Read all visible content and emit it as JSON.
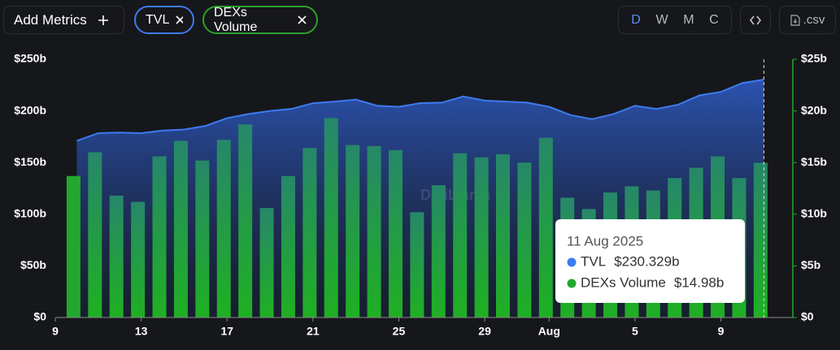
{
  "toolbar": {
    "add_metrics": "Add Metrics",
    "chips": [
      "TVL",
      "DEXs Volume"
    ],
    "periods": [
      "D",
      "W",
      "M",
      "C"
    ],
    "csv": ".csv"
  },
  "chart_data": {
    "type": "combo",
    "watermark": "DefiLlama",
    "x": [
      10,
      11,
      12,
      13,
      14,
      15,
      16,
      17,
      18,
      19,
      20,
      21,
      22,
      23,
      24,
      25,
      26,
      27,
      28,
      29,
      30,
      31,
      32,
      33,
      34,
      35,
      36,
      37,
      38,
      39,
      40,
      41,
      42
    ],
    "xlim": [
      9,
      43.35
    ],
    "xticks": [
      9,
      13,
      17,
      21,
      25,
      29,
      {
        "value": 32,
        "label": "Aug"
      },
      {
        "value": 36,
        "label": "5"
      },
      {
        "value": 40,
        "label": "9"
      }
    ],
    "ylim": [
      0,
      250
    ],
    "yticks": [
      {
        "value": 0,
        "label": "$0"
      },
      {
        "value": 50,
        "label": "$50b"
      },
      {
        "value": 100,
        "label": "$100b"
      },
      {
        "value": 150,
        "label": "$150b"
      },
      {
        "value": 200,
        "label": "$200b"
      },
      {
        "value": 250,
        "label": "$250b"
      }
    ],
    "y2lim": [
      0,
      25
    ],
    "y2ticks": [
      {
        "value": 0,
        "label": "$0"
      },
      {
        "value": 5,
        "label": "$5b"
      },
      {
        "value": 10,
        "label": "$10b"
      },
      {
        "value": 15,
        "label": "$15b"
      },
      {
        "value": 20,
        "label": "$20b"
      },
      {
        "value": 25,
        "label": "$25b"
      }
    ],
    "series": [
      {
        "name": "TVL",
        "type": "area",
        "color": "#3d7bf0",
        "axis": "y",
        "values": [
          171,
          178.5,
          179,
          178.5,
          181,
          182,
          185.5,
          193,
          197,
          200,
          202,
          207.5,
          209,
          211,
          205,
          204,
          207.5,
          208,
          214,
          210,
          209,
          208,
          204,
          196,
          192,
          197,
          205,
          202,
          206,
          215,
          218.5,
          227,
          230.329
        ]
      },
      {
        "name": "DEXs Volume",
        "type": "bar",
        "color": "#22a82e",
        "axis": "y2",
        "values": [
          13.7,
          16.0,
          11.8,
          11.2,
          15.6,
          17.1,
          15.2,
          17.2,
          18.7,
          10.6,
          13.7,
          16.4,
          19.3,
          16.7,
          16.6,
          16.2,
          10.2,
          12.8,
          15.9,
          15.5,
          15.8,
          15.0,
          17.4,
          11.6,
          10.5,
          12.1,
          12.7,
          12.3,
          13.5,
          14.5,
          15.6,
          13.5,
          14.98
        ]
      }
    ],
    "tooltip": {
      "date": "11 Aug 2025",
      "items": [
        {
          "name": "TVL",
          "value": "$230.329b"
        },
        {
          "name": "DEXs Volume",
          "value": "$14.98b"
        }
      ]
    }
  }
}
